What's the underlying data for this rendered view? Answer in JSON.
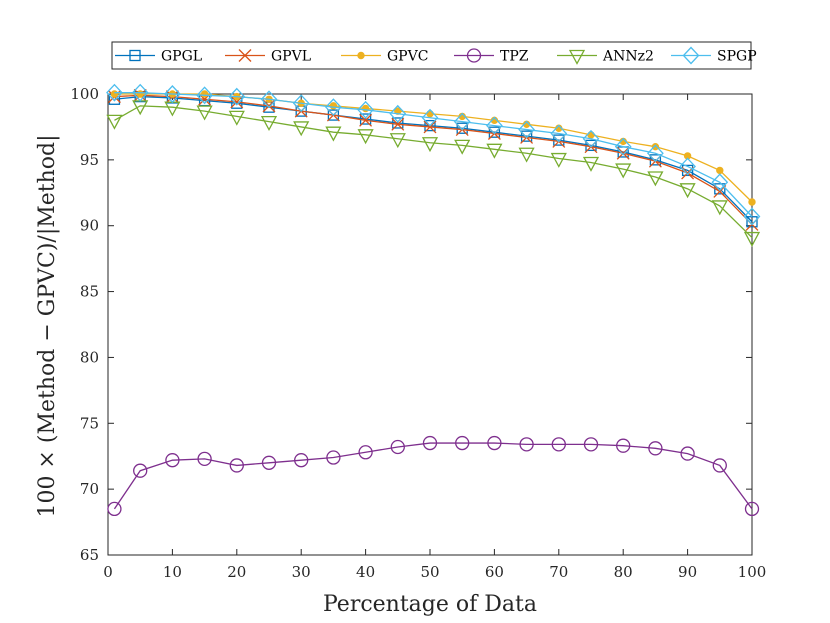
{
  "chart_data": {
    "type": "line",
    "xlabel": "Percentage of Data",
    "ylabel": "100 × (Method − GPVC)/|Method|",
    "xlim": [
      0,
      100
    ],
    "ylim": [
      65,
      100
    ],
    "xticks": [
      "0",
      "10",
      "20",
      "30",
      "40",
      "50",
      "60",
      "70",
      "80",
      "90",
      "100"
    ],
    "yticks": [
      "65",
      "70",
      "75",
      "80",
      "85",
      "90",
      "95",
      "100"
    ],
    "grid": false,
    "legend_position": "top",
    "x": [
      1,
      5,
      10,
      15,
      20,
      25,
      30,
      35,
      40,
      45,
      50,
      55,
      60,
      65,
      70,
      75,
      80,
      85,
      90,
      95,
      100
    ],
    "series": [
      {
        "name": "GPGL",
        "color": "#0072BD",
        "marker": "square",
        "values": [
          99.6,
          99.8,
          99.7,
          99.5,
          99.3,
          99.0,
          98.7,
          98.4,
          98.1,
          97.8,
          97.6,
          97.4,
          97.1,
          96.8,
          96.5,
          96.1,
          95.6,
          95.0,
          94.2,
          92.8,
          90.3
        ]
      },
      {
        "name": "GPVL",
        "color": "#D95319",
        "marker": "x",
        "values": [
          99.8,
          99.9,
          99.8,
          99.6,
          99.4,
          99.1,
          98.7,
          98.4,
          98.0,
          97.7,
          97.5,
          97.3,
          97.0,
          96.7,
          96.4,
          96.0,
          95.5,
          94.9,
          94.0,
          92.6,
          90.1
        ]
      },
      {
        "name": "GPVC",
        "color": "#EDB120",
        "marker": "dot",
        "values": [
          100.0,
          100.0,
          100.0,
          100.0,
          99.8,
          99.6,
          99.3,
          99.1,
          98.9,
          98.7,
          98.5,
          98.3,
          98.0,
          97.7,
          97.4,
          96.9,
          96.4,
          96.0,
          95.3,
          94.2,
          91.8
        ]
      },
      {
        "name": "TPZ",
        "color": "#7E2F8E",
        "marker": "circle",
        "values": [
          68.5,
          71.4,
          72.2,
          72.3,
          71.8,
          72.0,
          72.2,
          72.4,
          72.8,
          73.2,
          73.5,
          73.5,
          73.5,
          73.4,
          73.4,
          73.4,
          73.3,
          73.1,
          72.7,
          71.8,
          68.5
        ]
      },
      {
        "name": "ANNz2",
        "color": "#77AC30",
        "marker": "triangle-down",
        "values": [
          98.0,
          99.1,
          99.0,
          98.7,
          98.3,
          97.9,
          97.5,
          97.1,
          96.9,
          96.6,
          96.3,
          96.1,
          95.8,
          95.5,
          95.1,
          94.8,
          94.3,
          93.7,
          92.8,
          91.5,
          89.1
        ]
      },
      {
        "name": "SPGP",
        "color": "#4DBEEE",
        "marker": "diamond",
        "values": [
          100.1,
          100.1,
          100.0,
          99.9,
          99.8,
          99.6,
          99.3,
          99.0,
          98.8,
          98.5,
          98.2,
          97.9,
          97.6,
          97.3,
          97.0,
          96.6,
          96.0,
          95.5,
          94.5,
          93.3,
          90.7
        ]
      }
    ]
  }
}
